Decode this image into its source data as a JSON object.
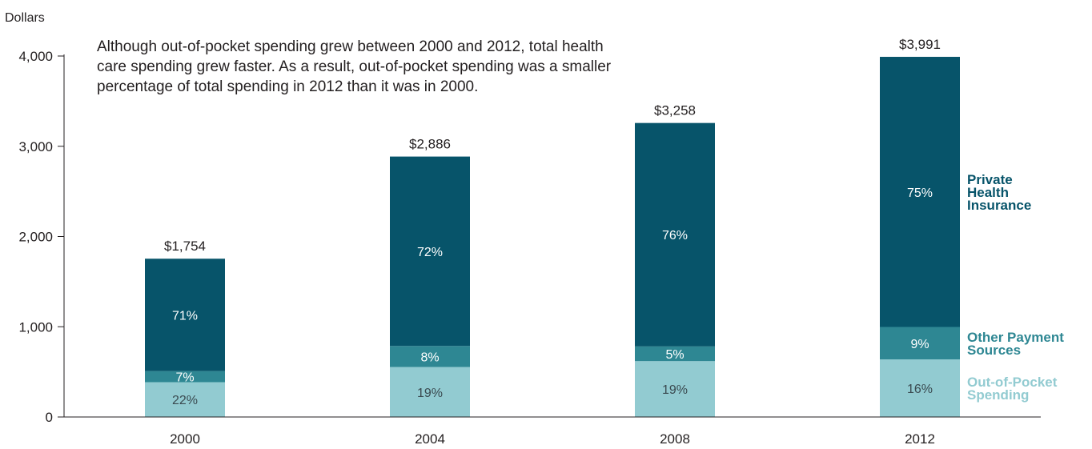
{
  "chart_data": {
    "type": "bar",
    "stacked": true,
    "ylabel": "Dollars",
    "ylim": [
      0,
      4000
    ],
    "yticks": [
      0,
      1000,
      2000,
      3000,
      4000
    ],
    "ytick_labels": [
      "0",
      "1,000",
      "2,000",
      "3,000",
      "4,000"
    ],
    "categories": [
      "2000",
      "2004",
      "2008",
      "2012"
    ],
    "totals": [
      1754,
      2886,
      3258,
      3991
    ],
    "total_labels": [
      "$1,754",
      "$2,886",
      "$3,258",
      "$3,991"
    ],
    "annotation": [
      "Although out-of-pocket spending grew between 2000 and 2012, total health",
      "care spending grew faster. As a result, out-of-pocket spending was a smaller",
      "percentage of total spending in 2012 than it was in 2000."
    ],
    "series": [
      {
        "name": "Out-of-Pocket Spending",
        "legend_lines": [
          "Out-of-Pocket",
          "Spending"
        ],
        "color": "#92cbd1",
        "label_color": "#3a4a50",
        "percent": [
          22,
          19,
          19,
          16
        ],
        "percent_labels": [
          "22%",
          "19%",
          "19%",
          "16%"
        ]
      },
      {
        "name": "Other Payment Sources",
        "legend_lines": [
          "Other Payment",
          "Sources"
        ],
        "color": "#2e8793",
        "label_color": "#ffffff",
        "percent": [
          7,
          8,
          5,
          9
        ],
        "percent_labels": [
          "7%",
          "8%",
          "5%",
          "9%"
        ]
      },
      {
        "name": "Private Health Insurance",
        "legend_lines": [
          "Private",
          "Health",
          "Insurance"
        ],
        "color": "#07546a",
        "label_color": "#ffffff",
        "percent": [
          71,
          72,
          76,
          75
        ],
        "percent_labels": [
          "71%",
          "72%",
          "76%",
          "75%"
        ]
      }
    ]
  }
}
